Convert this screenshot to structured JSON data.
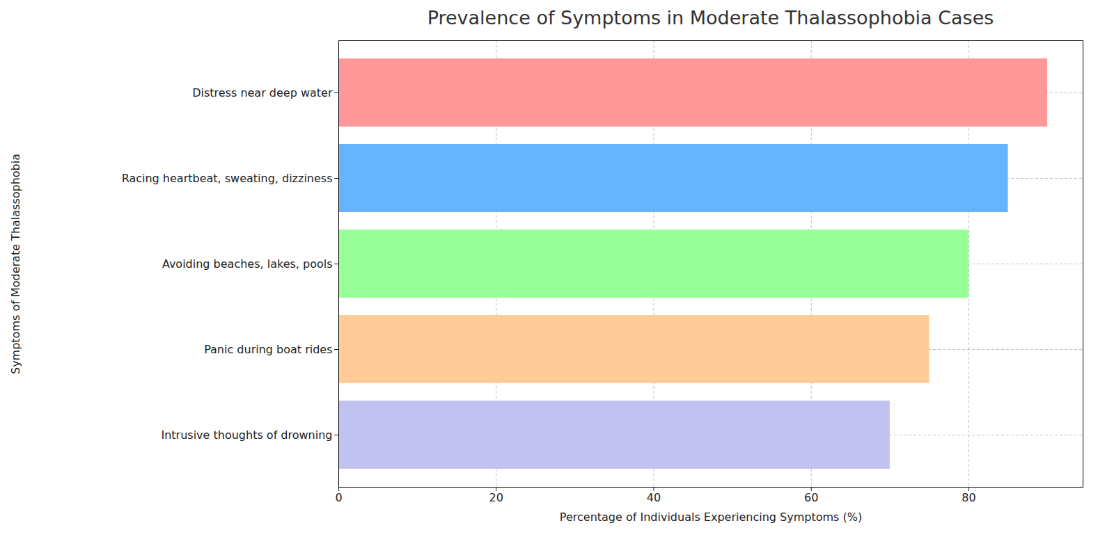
{
  "chart_data": {
    "type": "bar",
    "orientation": "horizontal",
    "title": "Prevalence of Symptoms in Moderate Thalassophobia Cases",
    "xlabel": "Percentage of Individuals Experiencing Symptoms (%)",
    "ylabel": "Symptoms of Moderate Thalassophobia",
    "categories": [
      "Distress near deep water",
      "Racing heartbeat, sweating, dizziness",
      "Avoiding beaches, lakes, pools",
      "Panic during boat rides",
      "Intrusive thoughts of drowning"
    ],
    "values": [
      90,
      85,
      80,
      75,
      70
    ],
    "colors": [
      "#ff9999",
      "#66b3ff",
      "#99ff99",
      "#ffcc99",
      "#c2c2f0"
    ],
    "xlim": [
      0,
      94.5
    ],
    "xticks": [
      0,
      20,
      40,
      60,
      80
    ],
    "grid": true
  }
}
